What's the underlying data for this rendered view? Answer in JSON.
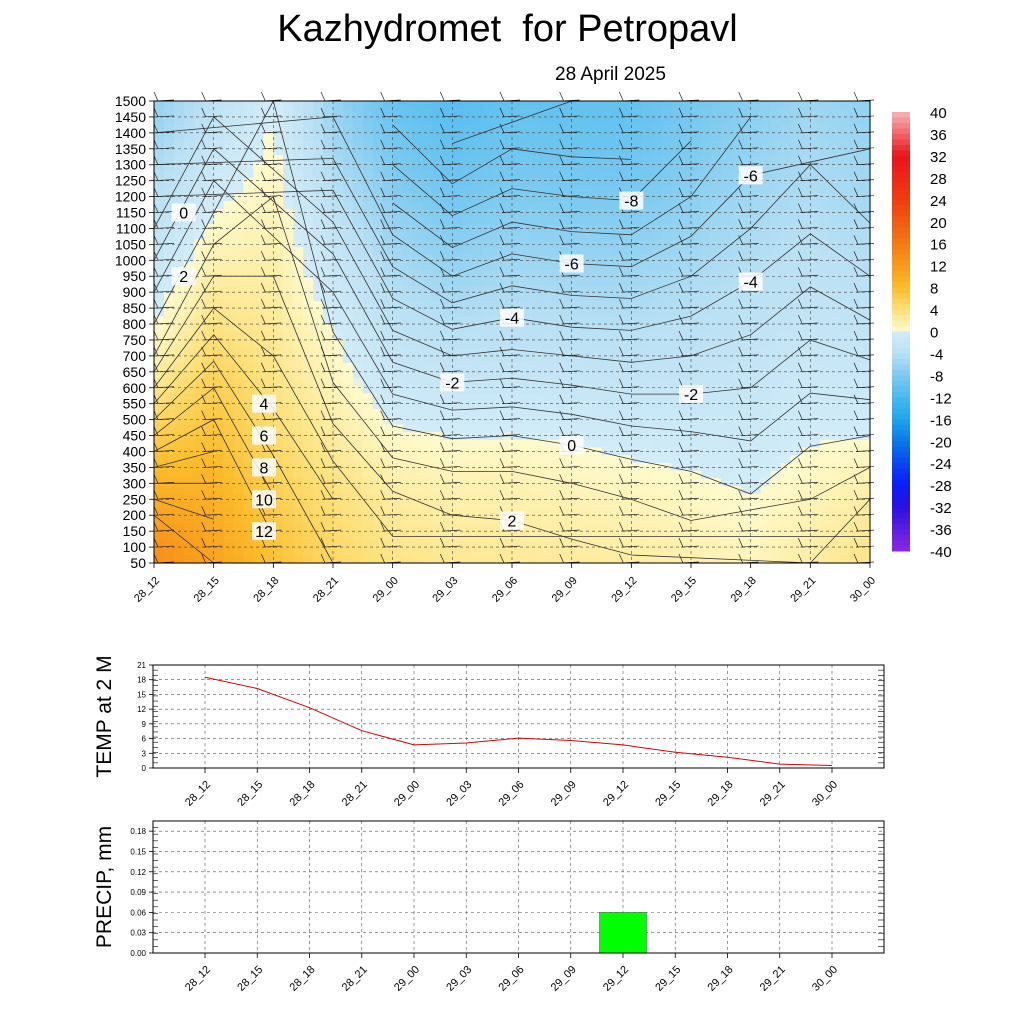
{
  "title": "Kazhydromet  for Petropavl",
  "subtitle": "28 April 2025",
  "chart_data": [
    {
      "type": "heatmap",
      "time_labels": [
        "28_12",
        "28_15",
        "28_18",
        "28_21",
        "29_00",
        "29_03",
        "29_06",
        "29_09",
        "29_12",
        "29_15",
        "29_18",
        "29_21",
        "30_00"
      ],
      "y_labels": [
        50,
        100,
        150,
        200,
        250,
        300,
        350,
        400,
        450,
        500,
        550,
        600,
        650,
        700,
        750,
        800,
        850,
        900,
        950,
        1000,
        1050,
        1100,
        1150,
        1200,
        1250,
        1300,
        1350,
        1400,
        1450,
        1500
      ],
      "ylim": [
        50,
        1500
      ],
      "colorbar": {
        "labels": [
          40,
          36,
          32,
          28,
          24,
          20,
          16,
          12,
          8,
          4,
          0,
          -4,
          -8,
          -12,
          -16,
          -20,
          -24,
          -28,
          -32,
          -36,
          -40
        ],
        "stops": [
          {
            "v": 40,
            "c": "#f7b6b6"
          },
          {
            "v": 32,
            "c": "#e8141c"
          },
          {
            "v": 24,
            "c": "#f03c10"
          },
          {
            "v": 16,
            "c": "#f47a14"
          },
          {
            "v": 12,
            "c": "#f89a1c"
          },
          {
            "v": 8,
            "c": "#fbbd2c"
          },
          {
            "v": 4,
            "c": "#fde07a"
          },
          {
            "v": 0.01,
            "c": "#fffbd0"
          },
          {
            "v": 0,
            "c": "#d3ecf8"
          },
          {
            "v": -4,
            "c": "#b9e0f4"
          },
          {
            "v": -8,
            "c": "#7ccaf0"
          },
          {
            "v": -12,
            "c": "#48b9ee"
          },
          {
            "v": -16,
            "c": "#1fa4ea"
          },
          {
            "v": -20,
            "c": "#0a78e8"
          },
          {
            "v": -24,
            "c": "#0a46f0"
          },
          {
            "v": -28,
            "c": "#0a1cf8"
          },
          {
            "v": -32,
            "c": "#2a10e0"
          },
          {
            "v": -40,
            "c": "#8a2ae0"
          }
        ]
      },
      "temperature_grid": [
        [
          13,
          13,
          12,
          11,
          10,
          9,
          8,
          7,
          6,
          5,
          4,
          3,
          2,
          1,
          0.5,
          0,
          -0.5,
          -1,
          -1.5,
          -2,
          -2.5,
          -3,
          -3.5,
          -4,
          -4.5,
          -5,
          -5.5,
          -6,
          -6.3,
          -6.5
        ],
        [
          11,
          10.7,
          10.3,
          9.9,
          9.5,
          9,
          8.5,
          8,
          7.5,
          7,
          6.5,
          6,
          5.4,
          4.8,
          4.2,
          3.6,
          3,
          2.5,
          2,
          1.5,
          1,
          0.5,
          0,
          -0.5,
          -1,
          -1.5,
          -2,
          -2.5,
          -3,
          -3.5
        ],
        [
          7.5,
          7.2,
          6.9,
          6.5,
          6.1,
          5.7,
          5.3,
          4.9,
          4.5,
          4.2,
          3.9,
          3.6,
          3.3,
          3,
          2.8,
          2.6,
          2.4,
          2.2,
          2,
          1.8,
          1.6,
          1.4,
          1.2,
          1,
          0.8,
          0.6,
          0.4,
          0.2,
          0.1,
          0
        ],
        [
          5,
          4.8,
          4.6,
          4.3,
          4,
          3.6,
          3.2,
          2.7,
          2.3,
          1.9,
          1.5,
          1.1,
          0.8,
          0.5,
          0.2,
          -0.2,
          -0.6,
          -1,
          -1.4,
          -1.8,
          -2.3,
          -2.8,
          -3.3,
          -3.8,
          -4.3,
          -4.8,
          -5.3,
          -5.7,
          -6,
          -6.2
        ],
        [
          3.5,
          3.2,
          2.9,
          2.6,
          2.2,
          1.8,
          1.3,
          0.8,
          0.3,
          -0.2,
          -0.7,
          -1.2,
          -1.7,
          -2.2,
          -2.7,
          -3.2,
          -3.7,
          -4.2,
          -4.7,
          -5.2,
          -5.7,
          -6.2,
          -6.7,
          -7.2,
          -7.6,
          -8,
          -8.4,
          -8.8,
          -9.2,
          -9.5
        ],
        [
          2.8,
          2.6,
          2.3,
          2,
          1.7,
          1.3,
          0.9,
          0.4,
          -0.1,
          -0.7,
          -1.2,
          -1.8,
          -2.4,
          -3,
          -3.6,
          -4.2,
          -4.8,
          -5.4,
          -6,
          -6.6,
          -7.1,
          -7.6,
          -8.1,
          -8.6,
          -9.1,
          -9.5,
          -9.9,
          -10.2,
          -10.5,
          -10.8
        ],
        [
          2.6,
          2.4,
          2.2,
          1.9,
          1.6,
          1.3,
          0.9,
          0.5,
          0,
          -0.6,
          -1.1,
          -1.7,
          -2.2,
          -2.8,
          -3.3,
          -3.8,
          -4.3,
          -4.8,
          -5.3,
          -5.8,
          -6.3,
          -6.8,
          -7.3,
          -7.8,
          -8.2,
          -8.6,
          -9,
          -9.3,
          -9.6,
          -9.9
        ],
        [
          2.3,
          2.1,
          1.9,
          1.6,
          1.3,
          1,
          0.6,
          0.2,
          -0.3,
          -0.8,
          -1.4,
          -1.9,
          -2.5,
          -3,
          -3.6,
          -4.1,
          -4.6,
          -5.1,
          -5.6,
          -6.1,
          -6.6,
          -7.1,
          -7.6,
          -8,
          -8.4,
          -8.8,
          -9.2,
          -9.5,
          -9.8,
          -10
        ],
        [
          2.1,
          1.9,
          1.6,
          1.3,
          1,
          0.6,
          0.2,
          -0.2,
          -0.7,
          -1.2,
          -1.7,
          -2.2,
          -2.7,
          -3.2,
          -3.7,
          -4.2,
          -4.7,
          -5.2,
          -5.7,
          -6.2,
          -6.7,
          -7.2,
          -7.7,
          -8.1,
          -8.5,
          -8.9,
          -9.2,
          -9.5,
          -9.8,
          -10
        ],
        [
          1.6,
          1.4,
          1.2,
          0.9,
          0.6,
          0.3,
          -0.1,
          -0.5,
          -0.9,
          -1.3,
          -1.7,
          -2.2,
          -2.6,
          -3,
          -3.4,
          -3.8,
          -4.2,
          -4.6,
          -5,
          -5.4,
          -5.8,
          -6.2,
          -6.6,
          -7,
          -7.3,
          -7.6,
          -7.9,
          -8.1,
          -8.3,
          -8.5
        ],
        [
          0.9,
          0.7,
          0.5,
          0.3,
          0.1,
          -0.2,
          -0.5,
          -0.8,
          -1.1,
          -1.4,
          -1.7,
          -2,
          -2.3,
          -2.6,
          -2.9,
          -3.2,
          -3.5,
          -3.8,
          -4.1,
          -4.4,
          -4.7,
          -5,
          -5.3,
          -5.6,
          -5.9,
          -6.2,
          -6.5,
          -6.8,
          -7,
          -7.2
        ],
        [
          2,
          1.8,
          1.6,
          1.3,
          1,
          0.7,
          0.4,
          0.1,
          -0.2,
          -0.5,
          -0.8,
          -1.1,
          -1.4,
          -1.7,
          -2,
          -2.3,
          -2.6,
          -2.9,
          -3.2,
          -3.5,
          -3.8,
          -4.1,
          -4.4,
          -4.6,
          -4.8,
          -5,
          -5.2,
          -5.4,
          -5.6,
          -5.8
        ],
        [
          3.5,
          3.2,
          2.9,
          2.5,
          2,
          1.5,
          1,
          0.5,
          0,
          -0.5,
          -0.9,
          -1.3,
          -1.7,
          -2.1,
          -2.5,
          -2.9,
          -3.3,
          -3.7,
          -4,
          -4.3,
          -4.6,
          -4.9,
          -5.2,
          -5.4,
          -5.6,
          -5.8,
          -6,
          -6.2,
          -6.4,
          -6.6
        ]
      ],
      "contour_labels": [
        {
          "text": "12",
          "row": 0,
          "level": 12
        },
        {
          "text": "10",
          "row": 0,
          "level": 10
        },
        {
          "text": "8",
          "row": 0,
          "level": 8
        },
        {
          "text": "6",
          "row": 0,
          "level": 6
        },
        {
          "text": "4",
          "row": 0,
          "level": 4
        },
        {
          "text": "2",
          "row": 1,
          "level": 2
        },
        {
          "text": "0",
          "row": 1,
          "level": 0
        },
        {
          "text": "-2",
          "row": 5,
          "level": -2
        },
        {
          "text": "-4",
          "row": 6,
          "level": -4
        },
        {
          "text": "-6",
          "row": 7,
          "level": -6
        },
        {
          "text": "-8",
          "row": 8,
          "level": -8
        },
        {
          "text": "-6",
          "row": 10,
          "level": -6
        },
        {
          "text": "-4",
          "row": 10,
          "level": -4
        },
        {
          "text": "-2",
          "row": 9,
          "level": -2
        },
        {
          "text": "0",
          "row": 7,
          "level": 0
        },
        {
          "text": "2",
          "row": 6,
          "level": 2
        }
      ]
    },
    {
      "type": "line",
      "ylabel": "TEMP at 2 M",
      "x": [
        "28_12",
        "28_15",
        "28_18",
        "28_21",
        "29_00",
        "29_03",
        "29_06",
        "29_09",
        "29_12",
        "29_15",
        "29_18",
        "29_21",
        "30_00"
      ],
      "values": [
        18.5,
        16.2,
        12.3,
        7.6,
        4.7,
        5.1,
        6.1,
        5.6,
        4.7,
        3.2,
        2.2,
        0.8,
        0.5
      ],
      "ylim": [
        0,
        21
      ],
      "yticks": [
        0,
        3,
        6,
        9,
        12,
        15,
        18,
        21
      ],
      "line_color": "#e00000"
    },
    {
      "type": "bar",
      "ylabel": "PRECIP, mm",
      "x": [
        "28_12",
        "28_15",
        "28_18",
        "28_21",
        "29_00",
        "29_03",
        "29_06",
        "29_09",
        "29_12",
        "29_15",
        "29_18",
        "29_21",
        "30_00"
      ],
      "values": [
        0,
        0,
        0,
        0,
        0,
        0,
        0,
        0,
        0.06,
        0,
        0,
        0,
        0
      ],
      "ylim": [
        0,
        0.195
      ],
      "yticks": [
        "0.00",
        "0.03",
        "0.06",
        "0.09",
        "0.12",
        "0.15",
        "0.18"
      ],
      "bar_color": "#00ff00"
    }
  ]
}
